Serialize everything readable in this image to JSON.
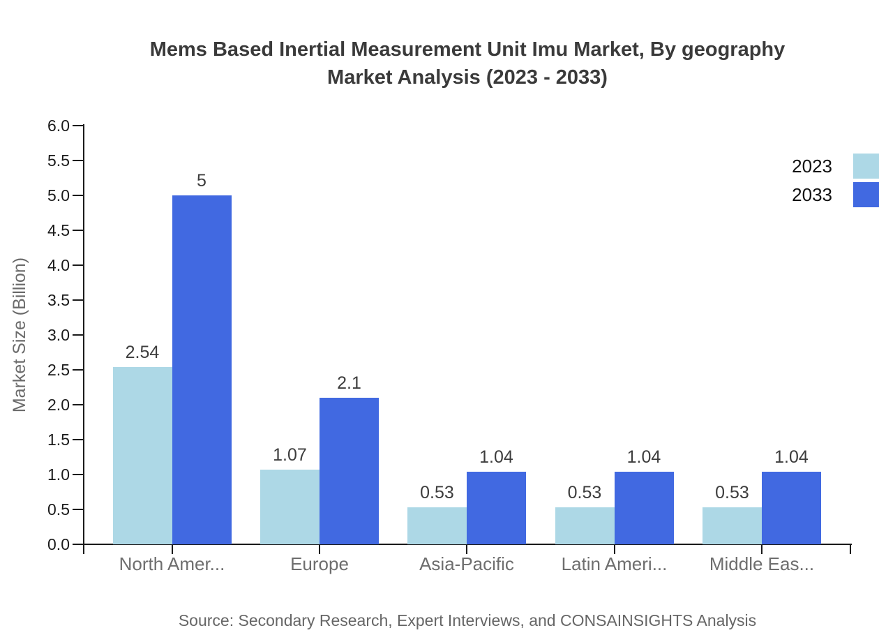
{
  "title": {
    "line1": "Mems Based Inertial Measurement Unit Imu Market, By geography",
    "line2": "Market Analysis (2023 - 2033)"
  },
  "source": "Source: Secondary Research, Expert Interviews, and CONSAINSIGHTS Analysis",
  "legend": {
    "items": [
      {
        "label": "2023",
        "color": "#ADD8E6"
      },
      {
        "label": "2033",
        "color": "#4169E1"
      }
    ]
  },
  "chart_data": {
    "type": "bar",
    "title": "Mems Based Inertial Measurement Unit Imu Market, By geography Market Analysis (2023 - 2033)",
    "xlabel": "",
    "ylabel": "Market Size (Billion)",
    "ylim": [
      0,
      6
    ],
    "ytick_step": 0.5,
    "y_ticks": [
      "0.0",
      "0.5",
      "1.0",
      "1.5",
      "2.0",
      "2.5",
      "3.0",
      "3.5",
      "4.0",
      "4.5",
      "5.0",
      "5.5",
      "6.0"
    ],
    "categories": [
      "North Amer...",
      "Europe",
      "Asia-Pacific",
      "Latin Ameri...",
      "Middle Eas..."
    ],
    "series": [
      {
        "name": "2023",
        "color": "#ADD8E6",
        "values": [
          2.54,
          1.07,
          0.53,
          0.53,
          0.53
        ],
        "labels": [
          "2.54",
          "1.07",
          "0.53",
          "0.53",
          "0.53"
        ]
      },
      {
        "name": "2033",
        "color": "#4169E1",
        "values": [
          5,
          2.1,
          1.04,
          1.04,
          1.04
        ],
        "labels": [
          "5",
          "2.1",
          "1.04",
          "1.04",
          "1.04"
        ]
      }
    ],
    "legend_position": "top-right",
    "grid": false,
    "value_labels_shown": true
  }
}
